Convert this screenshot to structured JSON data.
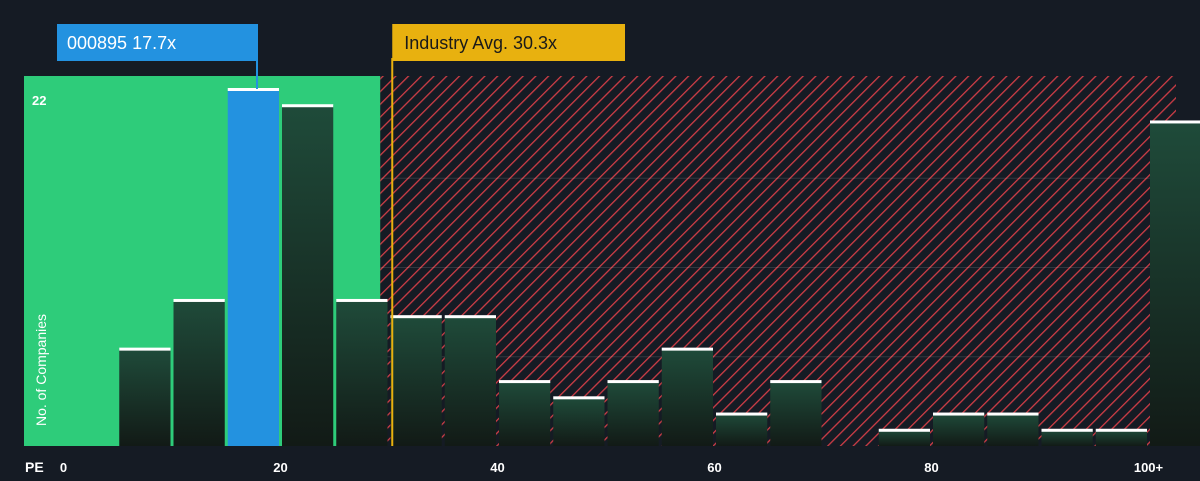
{
  "chart_data": {
    "type": "bar",
    "title": "",
    "xlabel": "PE",
    "ylabel": "No. of Companies",
    "x_ticks": [
      0,
      20,
      40,
      60,
      80,
      100
    ],
    "x_tick_labels": [
      "0",
      "20",
      "40",
      "60",
      "80",
      "100+"
    ],
    "xlim": [
      0,
      100
    ],
    "ylim": [
      0,
      22
    ],
    "y_tick_labels": [
      "22"
    ],
    "bins": [
      {
        "start": 5,
        "end": 10,
        "value": 6
      },
      {
        "start": 10,
        "end": 15,
        "value": 9
      },
      {
        "start": 15,
        "end": 20,
        "value": 22
      },
      {
        "start": 20,
        "end": 25,
        "value": 21
      },
      {
        "start": 25,
        "end": 30,
        "value": 9
      },
      {
        "start": 30,
        "end": 35,
        "value": 8
      },
      {
        "start": 35,
        "end": 40,
        "value": 8
      },
      {
        "start": 40,
        "end": 45,
        "value": 4
      },
      {
        "start": 45,
        "end": 50,
        "value": 3
      },
      {
        "start": 50,
        "end": 55,
        "value": 4
      },
      {
        "start": 55,
        "end": 60,
        "value": 6
      },
      {
        "start": 60,
        "end": 65,
        "value": 2
      },
      {
        "start": 65,
        "end": 70,
        "value": 4
      },
      {
        "start": 75,
        "end": 80,
        "value": 1
      },
      {
        "start": 80,
        "end": 85,
        "value": 2
      },
      {
        "start": 85,
        "end": 90,
        "value": 2
      },
      {
        "start": 90,
        "end": 95,
        "value": 1
      },
      {
        "start": 95,
        "end": 100,
        "value": 1
      },
      {
        "start": 100,
        "end": 105,
        "value": 20
      }
    ],
    "company": {
      "label": "000895 17.7x",
      "pe": 17.7,
      "bin_index": 2
    },
    "industry_avg": {
      "label": "Industry Avg. 30.3x",
      "pe": 30.3
    },
    "fair_region_end_pe": 29.2,
    "colors": {
      "background": "#151b24",
      "fair_region": "#2ecc7a",
      "company_bar": "#2392e0",
      "bar_fill_top": "#1f4b3a",
      "bar_fill_bottom": "#121a16",
      "bar_cap": "#ffffff",
      "overvalued_hatch": "#cf3d46",
      "industry_line": "#e8b10f",
      "industry_label_bg": "#e8b10f",
      "company_label_bg": "#2392e0",
      "axis_text": "#ffffff"
    }
  }
}
